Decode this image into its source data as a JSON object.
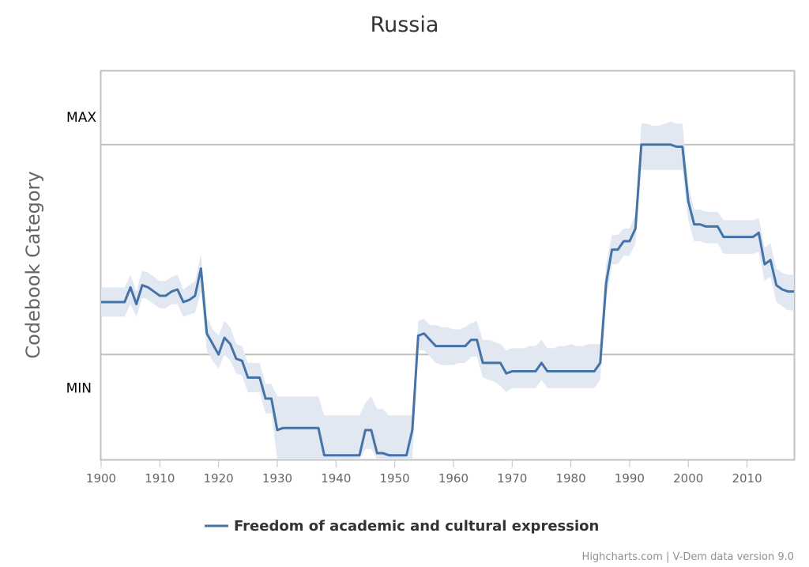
{
  "chart_data": {
    "type": "line",
    "title": "Russia",
    "ylabel": "Codebook Category",
    "y_categories": [
      "MIN",
      "MAX"
    ],
    "xlim": [
      1900,
      2018
    ],
    "ylim": [
      -0.5,
      1.35
    ],
    "x_ticks": [
      1900,
      1910,
      1920,
      1930,
      1940,
      1950,
      1960,
      1970,
      1980,
      1990,
      2000,
      2010
    ],
    "grid": "horizontal lines at MIN and MAX",
    "legend_position": "bottom-center",
    "series": [
      {
        "name": "Freedom of academic and cultural expression",
        "color": "#4572a7",
        "band_color": "#e1e8f1",
        "x": [
          1900,
          1901,
          1902,
          1903,
          1904,
          1905,
          1906,
          1907,
          1908,
          1909,
          1910,
          1911,
          1912,
          1913,
          1914,
          1915,
          1916,
          1917,
          1918,
          1919,
          1920,
          1921,
          1922,
          1923,
          1924,
          1925,
          1926,
          1927,
          1928,
          1929,
          1930,
          1931,
          1932,
          1933,
          1934,
          1935,
          1936,
          1937,
          1938,
          1939,
          1940,
          1941,
          1942,
          1943,
          1944,
          1945,
          1946,
          1947,
          1948,
          1949,
          1950,
          1951,
          1952,
          1953,
          1954,
          1955,
          1956,
          1957,
          1958,
          1959,
          1960,
          1961,
          1962,
          1963,
          1964,
          1965,
          1966,
          1967,
          1968,
          1969,
          1970,
          1971,
          1972,
          1973,
          1974,
          1975,
          1976,
          1977,
          1978,
          1979,
          1980,
          1981,
          1982,
          1983,
          1984,
          1985,
          1986,
          1987,
          1988,
          1989,
          1990,
          1991,
          1992,
          1993,
          1994,
          1995,
          1996,
          1997,
          1998,
          1999,
          2000,
          2001,
          2002,
          2003,
          2004,
          2005,
          2006,
          2007,
          2008,
          2009,
          2010,
          2011,
          2012,
          2013,
          2014,
          2015,
          2016,
          2017,
          2018
        ],
        "y": [
          0.25,
          0.25,
          0.25,
          0.25,
          0.25,
          0.32,
          0.24,
          0.33,
          0.32,
          0.3,
          0.28,
          0.28,
          0.3,
          0.31,
          0.25,
          0.26,
          0.28,
          0.41,
          0.1,
          0.05,
          0.0,
          0.08,
          0.05,
          -0.02,
          -0.03,
          -0.11,
          -0.11,
          -0.11,
          -0.21,
          -0.21,
          -0.36,
          -0.35,
          -0.35,
          -0.35,
          -0.35,
          -0.35,
          -0.35,
          -0.35,
          -0.48,
          -0.48,
          -0.48,
          -0.48,
          -0.48,
          -0.48,
          -0.48,
          -0.36,
          -0.36,
          -0.47,
          -0.47,
          -0.48,
          -0.48,
          -0.48,
          -0.48,
          -0.36,
          0.09,
          0.1,
          0.07,
          0.04,
          0.04,
          0.04,
          0.04,
          0.04,
          0.04,
          0.07,
          0.07,
          -0.04,
          -0.04,
          -0.04,
          -0.04,
          -0.09,
          -0.08,
          -0.08,
          -0.08,
          -0.08,
          -0.08,
          -0.04,
          -0.08,
          -0.08,
          -0.08,
          -0.08,
          -0.08,
          -0.08,
          -0.08,
          -0.08,
          -0.08,
          -0.04,
          0.34,
          0.5,
          0.5,
          0.54,
          0.54,
          0.6,
          1.0,
          1.0,
          1.0,
          1.0,
          1.0,
          1.0,
          0.99,
          0.99,
          0.73,
          0.62,
          0.62,
          0.61,
          0.61,
          0.61,
          0.56,
          0.56,
          0.56,
          0.56,
          0.56,
          0.56,
          0.58,
          0.43,
          0.45,
          0.33,
          0.31,
          0.3,
          0.3
        ],
        "low": [
          0.18,
          0.18,
          0.18,
          0.18,
          0.18,
          0.24,
          0.18,
          0.27,
          0.26,
          0.24,
          0.22,
          0.22,
          0.24,
          0.24,
          0.18,
          0.19,
          0.2,
          0.3,
          0.02,
          -0.03,
          -0.07,
          0.0,
          -0.03,
          -0.09,
          -0.1,
          -0.18,
          -0.18,
          -0.18,
          -0.28,
          -0.28,
          -0.5,
          -0.5,
          -0.5,
          -0.5,
          -0.5,
          -0.5,
          -0.5,
          -0.5,
          -0.5,
          -0.5,
          -0.5,
          -0.5,
          -0.5,
          -0.5,
          -0.5,
          -0.45,
          -0.45,
          -0.5,
          -0.5,
          -0.5,
          -0.5,
          -0.5,
          -0.5,
          -0.5,
          0.02,
          0.02,
          -0.01,
          -0.04,
          -0.05,
          -0.05,
          -0.05,
          -0.04,
          -0.04,
          -0.01,
          -0.01,
          -0.11,
          -0.12,
          -0.13,
          -0.15,
          -0.18,
          -0.16,
          -0.16,
          -0.16,
          -0.16,
          -0.16,
          -0.12,
          -0.16,
          -0.16,
          -0.16,
          -0.16,
          -0.16,
          -0.16,
          -0.16,
          -0.16,
          -0.16,
          -0.12,
          0.25,
          0.43,
          0.43,
          0.47,
          0.47,
          0.53,
          0.88,
          0.88,
          0.88,
          0.88,
          0.88,
          0.88,
          0.88,
          0.88,
          0.64,
          0.54,
          0.54,
          0.53,
          0.53,
          0.53,
          0.48,
          0.48,
          0.48,
          0.48,
          0.48,
          0.48,
          0.49,
          0.35,
          0.37,
          0.25,
          0.23,
          0.21,
          0.21
        ],
        "high": [
          0.32,
          0.32,
          0.32,
          0.32,
          0.32,
          0.38,
          0.3,
          0.4,
          0.39,
          0.37,
          0.35,
          0.35,
          0.37,
          0.38,
          0.31,
          0.33,
          0.35,
          0.48,
          0.18,
          0.12,
          0.09,
          0.16,
          0.13,
          0.05,
          0.04,
          -0.04,
          -0.04,
          -0.04,
          -0.14,
          -0.14,
          -0.2,
          -0.2,
          -0.2,
          -0.2,
          -0.2,
          -0.2,
          -0.2,
          -0.2,
          -0.29,
          -0.29,
          -0.29,
          -0.29,
          -0.29,
          -0.29,
          -0.29,
          -0.23,
          -0.2,
          -0.26,
          -0.26,
          -0.29,
          -0.29,
          -0.29,
          -0.29,
          -0.29,
          0.16,
          0.17,
          0.14,
          0.14,
          0.13,
          0.13,
          0.12,
          0.12,
          0.13,
          0.15,
          0.16,
          0.07,
          0.07,
          0.06,
          0.05,
          0.02,
          0.03,
          0.03,
          0.03,
          0.04,
          0.04,
          0.07,
          0.03,
          0.03,
          0.04,
          0.04,
          0.05,
          0.04,
          0.04,
          0.05,
          0.05,
          0.05,
          0.43,
          0.57,
          0.57,
          0.6,
          0.6,
          0.67,
          1.1,
          1.1,
          1.09,
          1.09,
          1.1,
          1.11,
          1.1,
          1.1,
          0.81,
          0.69,
          0.69,
          0.68,
          0.68,
          0.68,
          0.64,
          0.64,
          0.64,
          0.64,
          0.64,
          0.64,
          0.65,
          0.51,
          0.53,
          0.41,
          0.39,
          0.38,
          0.38
        ]
      }
    ]
  },
  "credits": "Highcharts.com | V-Dem data version 9.0"
}
